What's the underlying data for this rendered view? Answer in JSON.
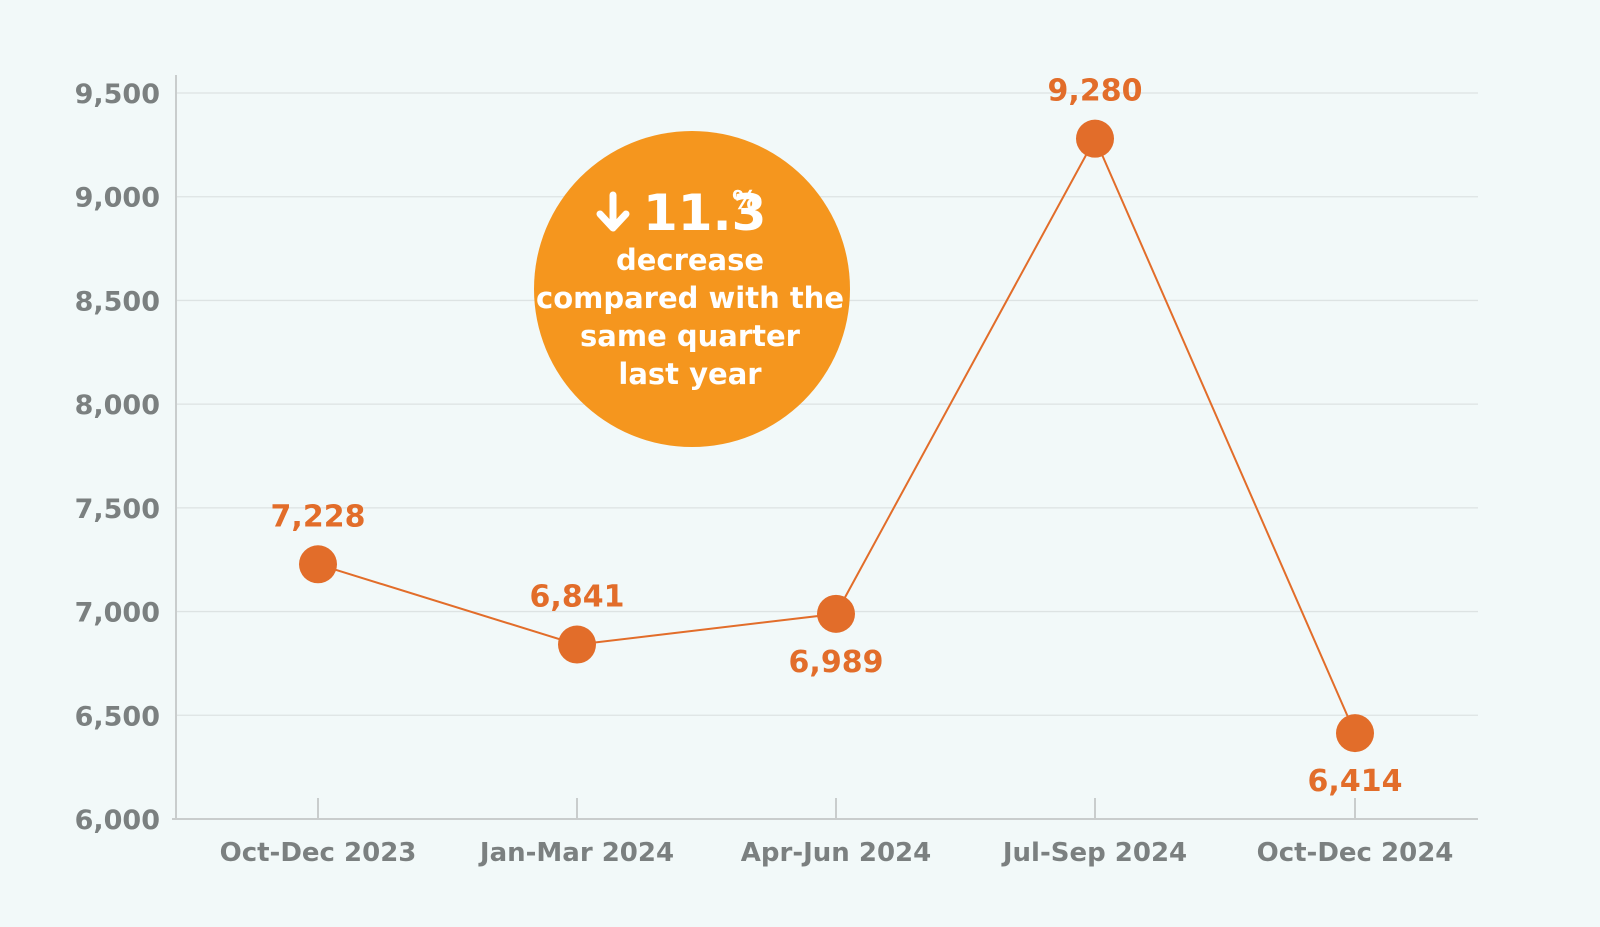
{
  "chart_data": {
    "type": "line",
    "categories": [
      "Oct-Dec 2023",
      "Jan-Mar 2024",
      "Apr-Jun 2024",
      "Jul-Sep 2024",
      "Oct-Dec 2024"
    ],
    "values": [
      7228,
      6841,
      6989,
      9280,
      6414
    ],
    "value_labels": [
      "7,228",
      "6,841",
      "6,989",
      "9,280",
      "6,414"
    ],
    "label_positions": [
      "above",
      "above",
      "below",
      "above",
      "below"
    ],
    "ylim": [
      6000,
      9500
    ],
    "yticks": [
      6000,
      6500,
      7000,
      7500,
      8000,
      8500,
      9000,
      9500
    ],
    "ytick_labels": [
      "6,000",
      "6,500",
      "7,000",
      "7,500",
      "8,000",
      "8,500",
      "9,000",
      "9,500"
    ],
    "grid": true,
    "line_color": "#e26d2a",
    "marker_color": "#e26d2a",
    "title": "",
    "xlabel": "",
    "ylabel": ""
  },
  "callout": {
    "arrow_icon": "arrow-down-icon",
    "value": "11.3",
    "unit": "%",
    "lines": [
      "decrease",
      "compared with the",
      "same quarter",
      "last year"
    ],
    "color": "#f5961e"
  },
  "colors": {
    "background": "#f2f9f9",
    "axis": "#c9cdcd",
    "grid": "#dde3e3",
    "tick_text": "#7b8080",
    "accent": "#e26d2a"
  }
}
